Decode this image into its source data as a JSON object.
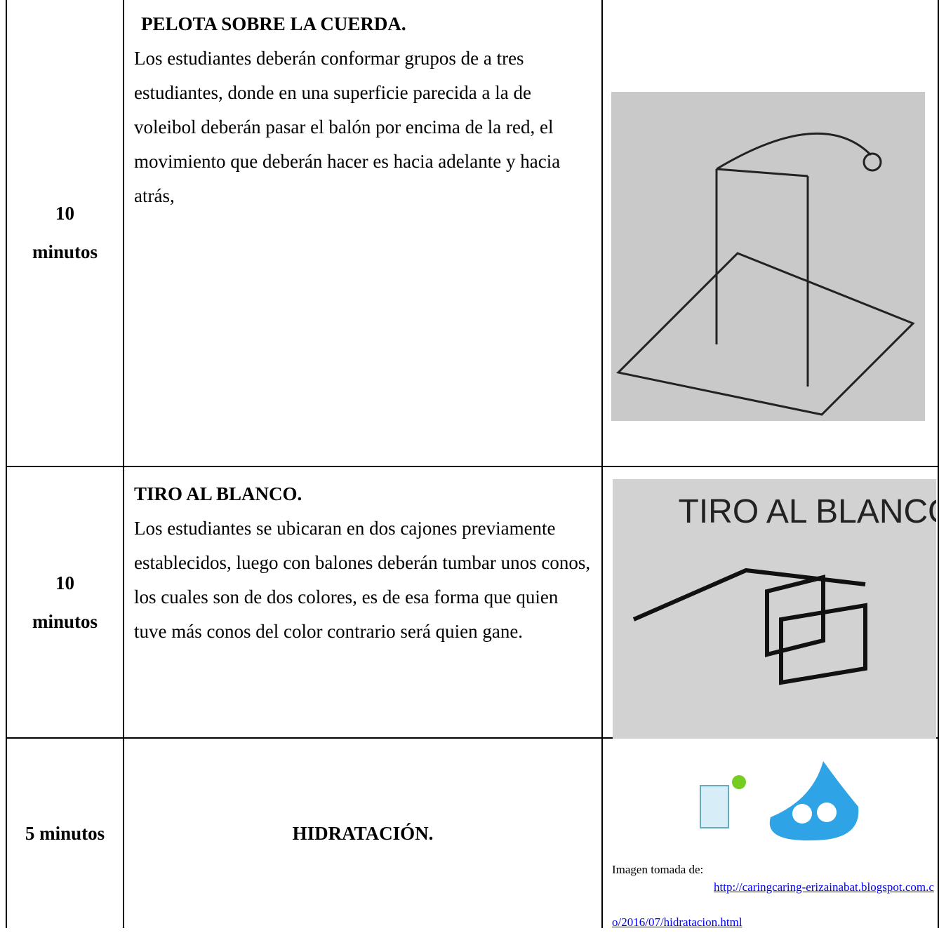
{
  "table": {
    "rows": [
      {
        "time": "10 minutos",
        "title": "PELOTA SOBRE LA CUERDA.",
        "description": "Los estudiantes deberán conformar grupos de a tres estudiantes, donde en una superficie parecida a la de voleibol deberán pasar el balón por encima de la red, el movimiento que deberán hacer es hacia adelante y hacia atrás,"
      },
      {
        "time": "10 minutos",
        "title": "TIRO AL BLANCO.",
        "description": "Los estudiantes se ubicaran en dos cajones previamente establecidos, luego con balones deberán tumbar unos conos, los cuales son de dos colores, es de esa forma que quien tuve más conos del color contrario será quien gane.",
        "image_text": "TIRO AL BLANCO"
      },
      {
        "time": "5 minutos",
        "title": "HIDRATACIÓN.",
        "caption": "Imagen tomada de:",
        "link": "http://caringcaring-erizainabat.blogspot.com.co/2016/07/hidratacion.html"
      }
    ]
  }
}
